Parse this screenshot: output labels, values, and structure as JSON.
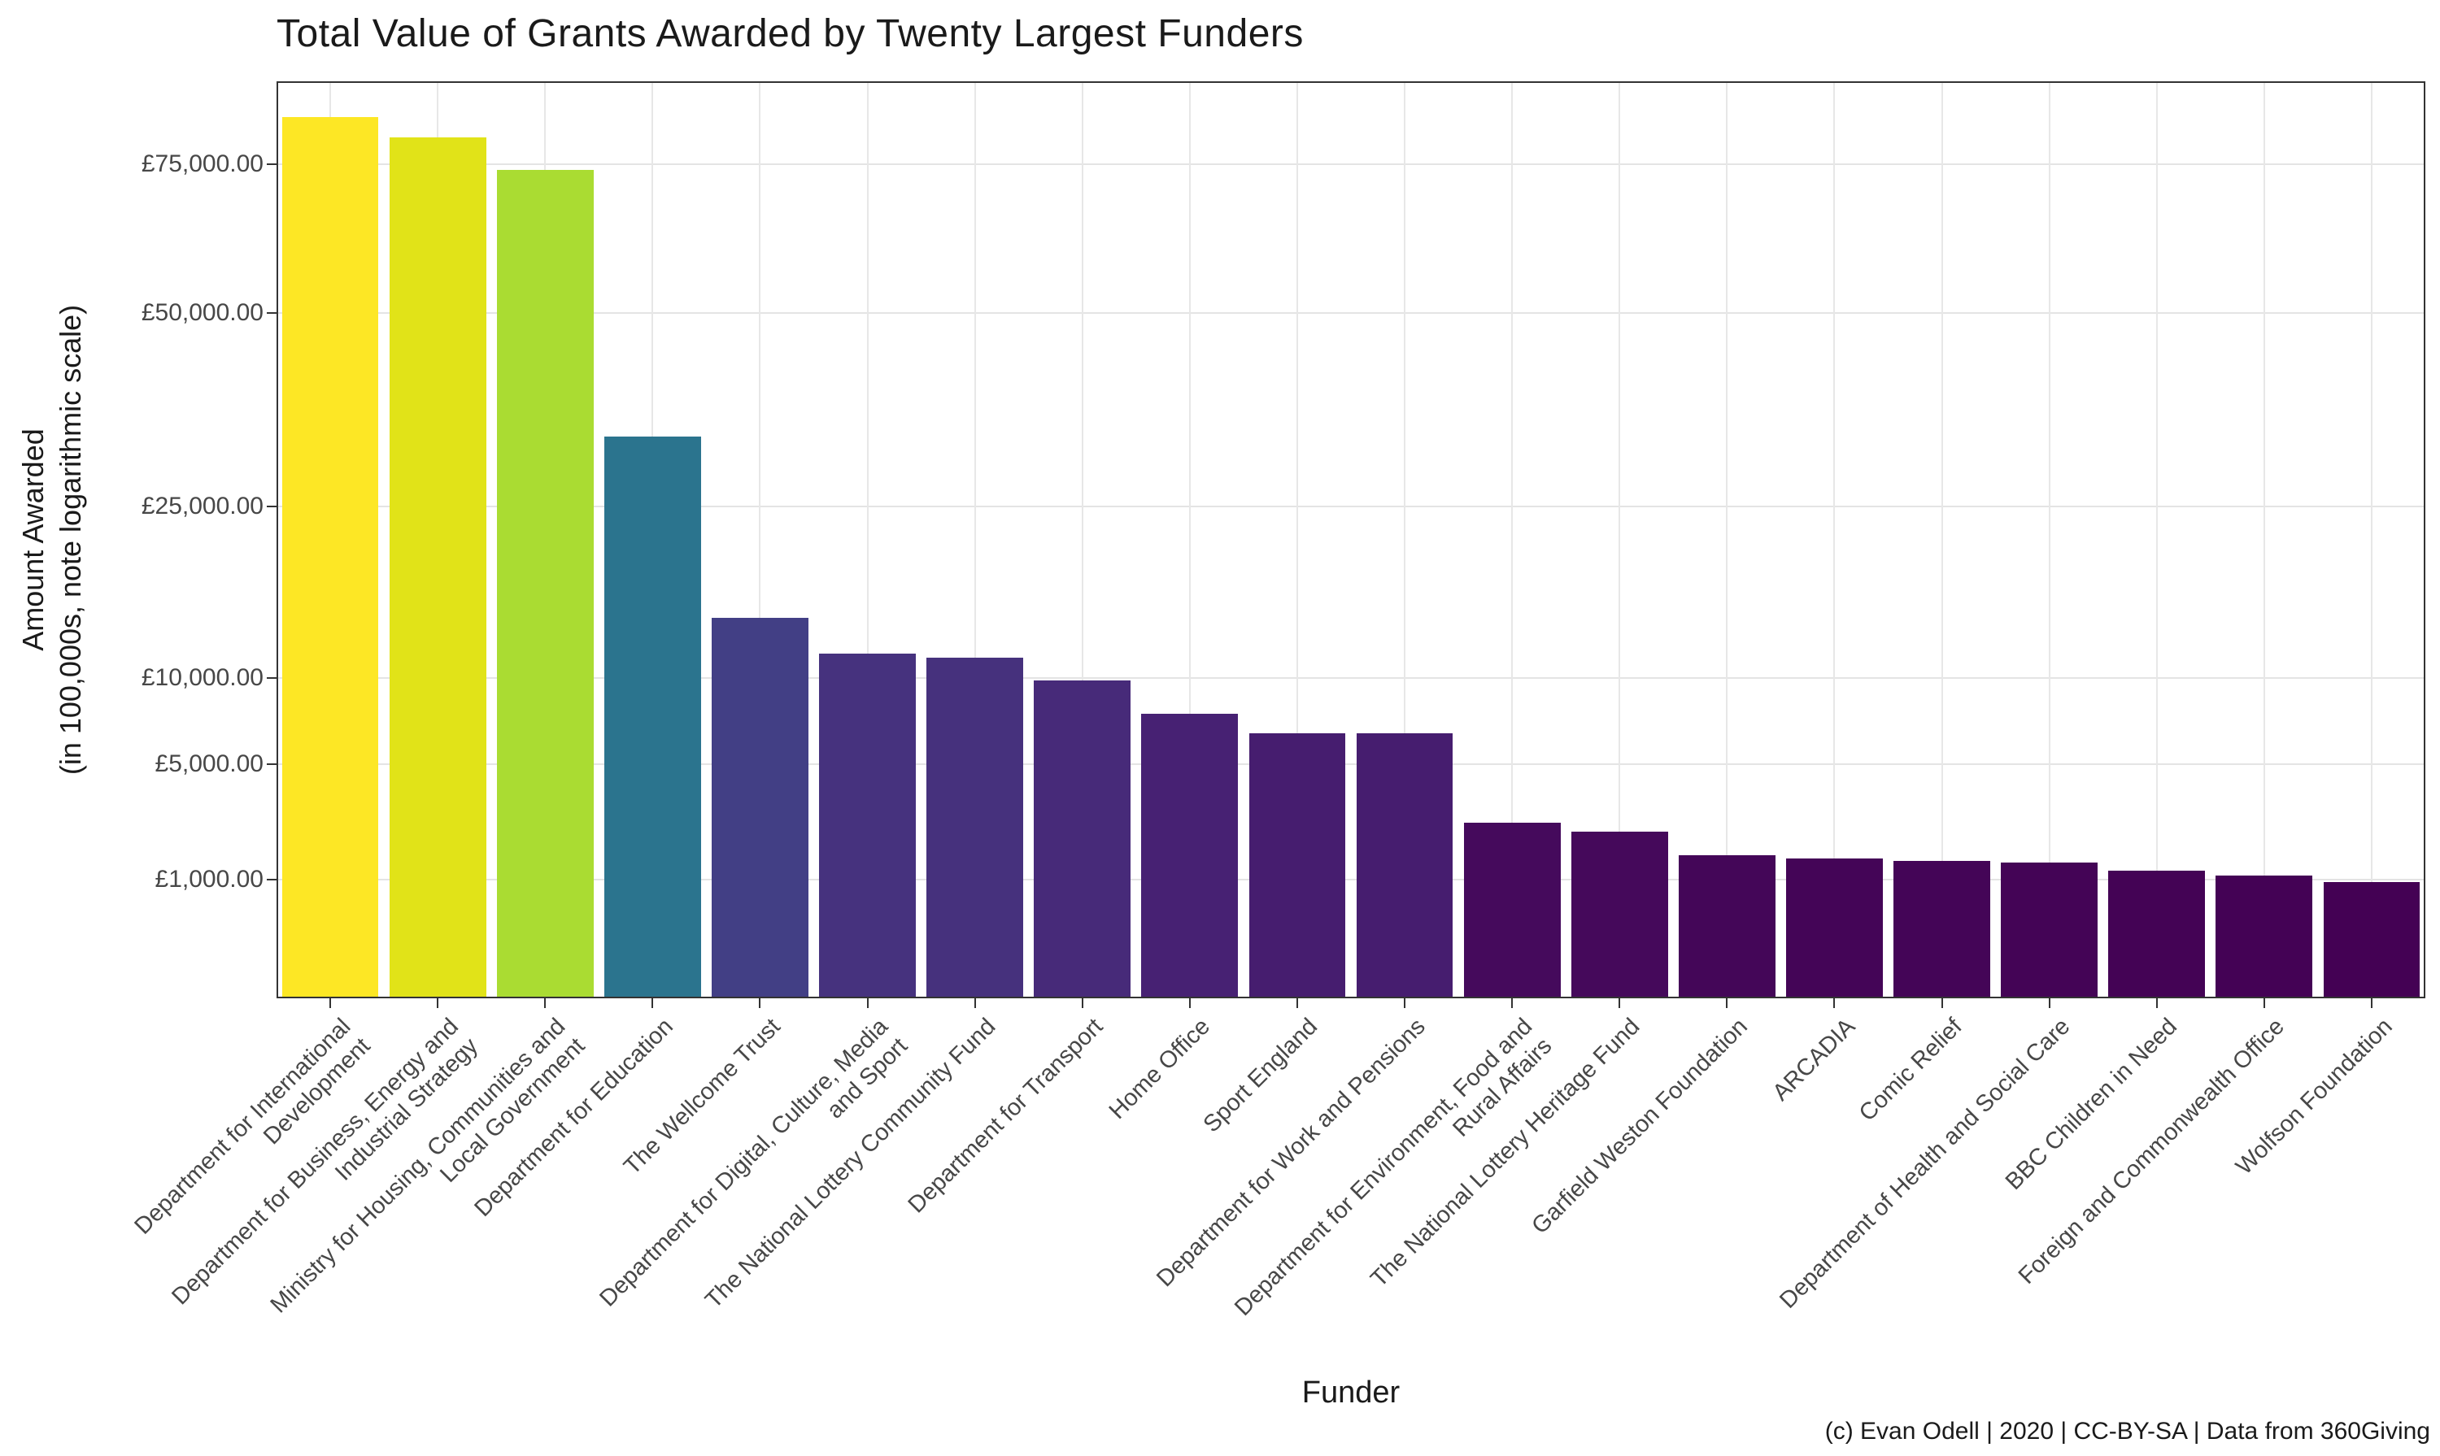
{
  "caption": "(c) Evan Odell | 2020 | CC-BY-SA | Data from 360Giving",
  "chart_data": {
    "type": "bar",
    "title": "Total Value of Grants Awarded by Twenty Largest Funders",
    "xlabel": "Funder",
    "ylabel": "Amount Awarded\n(in 100,000s, note logarithmic scale)",
    "legend": "none",
    "grid": "on",
    "ylim": [
      0,
      90000
    ],
    "y_ticks": [
      {
        "label": "£1,000.00",
        "value": 1000
      },
      {
        "label": "£5,000.00",
        "value": 5000
      },
      {
        "label": "£10,000.00",
        "value": 10000
      },
      {
        "label": "£25,000.00",
        "value": 25000
      },
      {
        "label": "£50,000.00",
        "value": 50000
      },
      {
        "label": "£75,000.00",
        "value": 75000
      }
    ],
    "categories": [
      "Department for International\nDevelopment",
      "Department for Business, Energy and\nIndustrial Strategy",
      "Ministry for Housing, Communities and\nLocal Government",
      "Department for Education",
      "The Wellcome Trust",
      "Department for Digital, Culture, Media\nand Sport",
      "The National Lottery Community Fund",
      "Department for Transport",
      "Home Office",
      "Sport England",
      "Department for Work and Pensions",
      "Department for Environment, Food and\nRural Affairs",
      "The National Lottery Heritage Fund",
      "Garfield Weston Foundation",
      "ARCADIA",
      "Comic Relief",
      "Department of Health and Social Care",
      "BBC Children in Need",
      "Foreign and Commonwealth Office",
      "Wolfson Foundation"
    ],
    "values": [
      84000,
      80000,
      74000,
      33000,
      14500,
      11700,
      11400,
      9800,
      7700,
      6600,
      6600,
      2600,
      2300,
      1600,
      1500,
      1450,
      1400,
      1200,
      1100,
      950
    ],
    "colors": [
      "#FDE725",
      "#E1E318",
      "#AADC32",
      "#2B748E",
      "#423F85",
      "#46327E",
      "#46317D",
      "#472A79",
      "#472173",
      "#461D6F",
      "#461D6F",
      "#450A5C",
      "#45095B",
      "#440658",
      "#440557",
      "#440557",
      "#440456",
      "#440355",
      "#440255",
      "#440154"
    ]
  }
}
